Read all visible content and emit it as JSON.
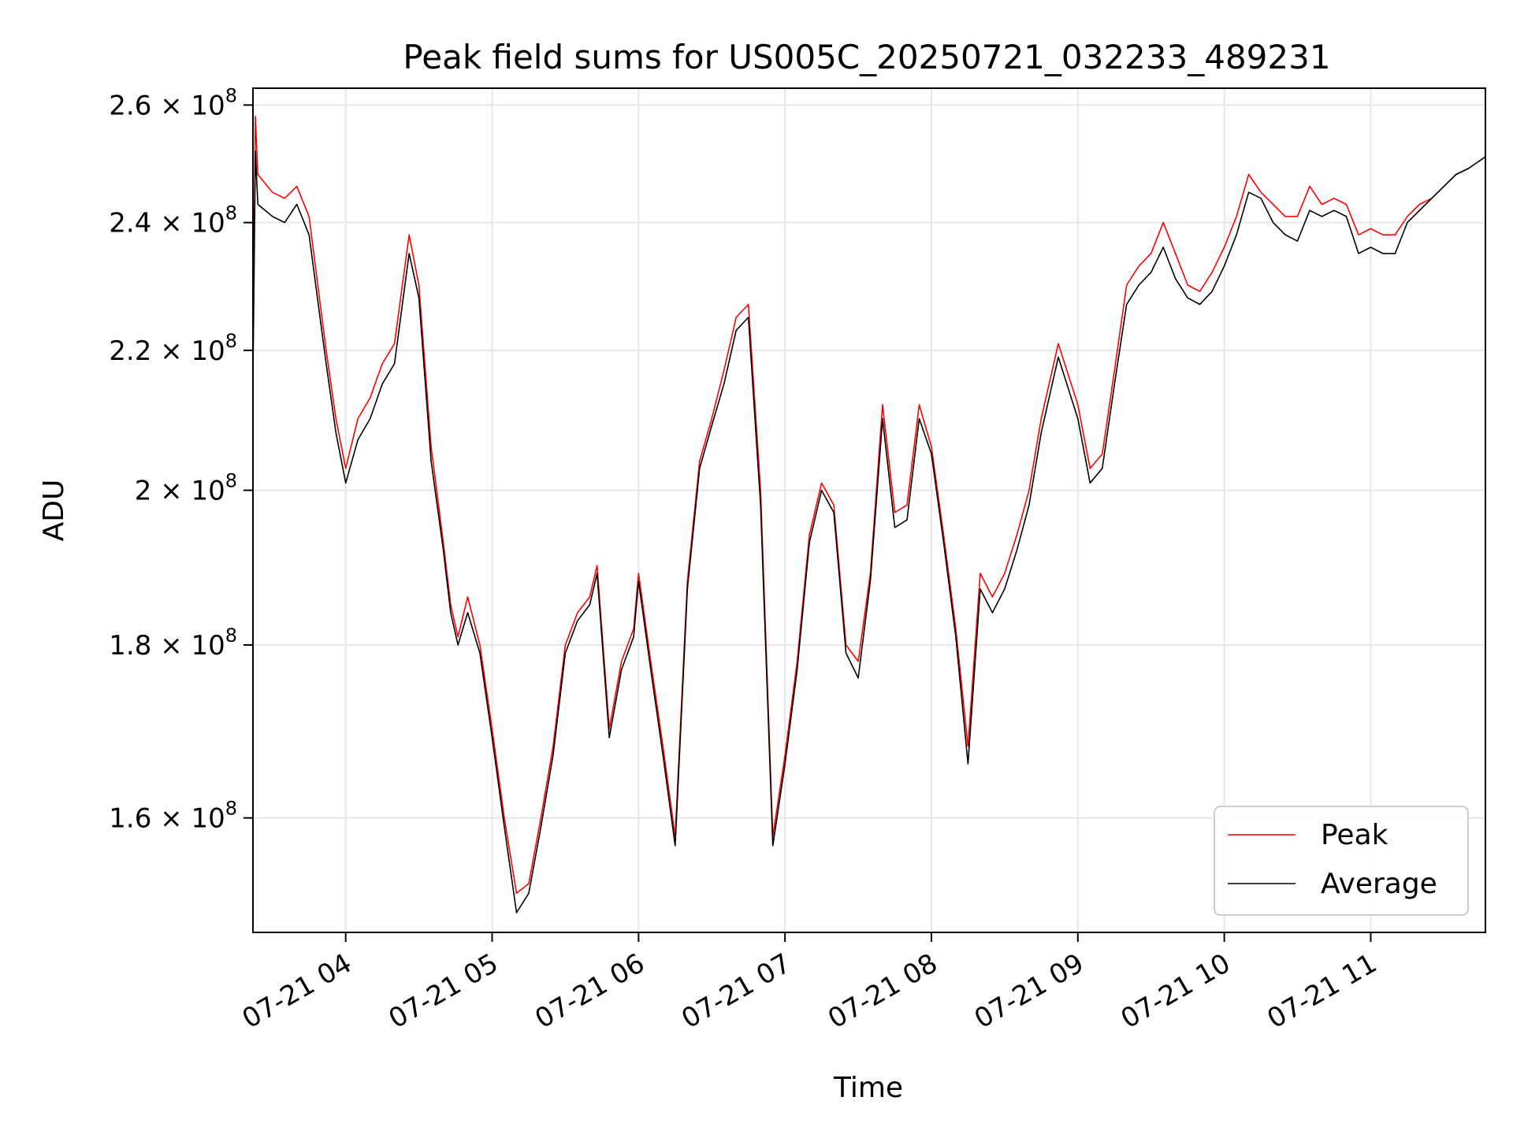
{
  "chart_data": {
    "type": "line",
    "title": "Peak field sums for US005C_20250721_032233_489231",
    "xlabel": "Time",
    "ylabel": "ADU",
    "y_scale": "log",
    "grid": true,
    "legend_position": "lower-right",
    "x_range": [
      "2025-07-21T03:22",
      "2025-07-21T11:47"
    ],
    "ylim": [
      148000000,
      263000000
    ],
    "x_ticks": [
      {
        "t": "2025-07-21T04:00",
        "label": "07-21 04"
      },
      {
        "t": "2025-07-21T05:00",
        "label": "07-21 05"
      },
      {
        "t": "2025-07-21T06:00",
        "label": "07-21 06"
      },
      {
        "t": "2025-07-21T07:00",
        "label": "07-21 07"
      },
      {
        "t": "2025-07-21T08:00",
        "label": "07-21 08"
      },
      {
        "t": "2025-07-21T09:00",
        "label": "07-21 09"
      },
      {
        "t": "2025-07-21T10:00",
        "label": "07-21 10"
      },
      {
        "t": "2025-07-21T11:00",
        "label": "07-21 11"
      }
    ],
    "y_ticks": [
      {
        "v": 160000000,
        "mant": "1.6",
        "exp": "8"
      },
      {
        "v": 180000000,
        "mant": "1.8",
        "exp": "8"
      },
      {
        "v": 200000000,
        "mant": "2",
        "exp": "8"
      },
      {
        "v": 220000000,
        "mant": "2.2",
        "exp": "8"
      },
      {
        "v": 240000000,
        "mant": "2.4",
        "exp": "8"
      },
      {
        "v": 260000000,
        "mant": "2.6",
        "exp": "8"
      }
    ],
    "series": [
      {
        "name": "Peak",
        "color": "#ff0000",
        "points": [
          [
            "2025-07-21T03:22",
            220000000
          ],
          [
            "2025-07-21T03:23",
            258000000
          ],
          [
            "2025-07-21T03:24",
            248000000
          ],
          [
            "2025-07-21T03:30",
            245000000
          ],
          [
            "2025-07-21T03:35",
            244000000
          ],
          [
            "2025-07-21T03:40",
            246000000
          ],
          [
            "2025-07-21T03:45",
            241000000
          ],
          [
            "2025-07-21T03:52",
            220000000
          ],
          [
            "2025-07-21T03:56",
            210000000
          ],
          [
            "2025-07-21T04:00",
            203000000
          ],
          [
            "2025-07-21T04:05",
            210000000
          ],
          [
            "2025-07-21T04:10",
            213000000
          ],
          [
            "2025-07-21T04:15",
            218000000
          ],
          [
            "2025-07-21T04:20",
            221000000
          ],
          [
            "2025-07-21T04:26",
            238000000
          ],
          [
            "2025-07-21T04:30",
            230000000
          ],
          [
            "2025-07-21T04:35",
            206000000
          ],
          [
            "2025-07-21T04:40",
            193000000
          ],
          [
            "2025-07-21T04:43",
            185000000
          ],
          [
            "2025-07-21T04:46",
            181000000
          ],
          [
            "2025-07-21T04:50",
            186000000
          ],
          [
            "2025-07-21T04:55",
            180000000
          ],
          [
            "2025-07-21T05:00",
            170000000
          ],
          [
            "2025-07-21T05:05",
            160000000
          ],
          [
            "2025-07-21T05:10",
            152000000
          ],
          [
            "2025-07-21T05:15",
            153000000
          ],
          [
            "2025-07-21T05:20",
            160000000
          ],
          [
            "2025-07-21T05:25",
            168000000
          ],
          [
            "2025-07-21T05:30",
            180000000
          ],
          [
            "2025-07-21T05:35",
            184000000
          ],
          [
            "2025-07-21T05:40",
            186000000
          ],
          [
            "2025-07-21T05:43",
            190000000
          ],
          [
            "2025-07-21T05:48",
            170000000
          ],
          [
            "2025-07-21T05:53",
            178000000
          ],
          [
            "2025-07-21T05:58",
            182000000
          ],
          [
            "2025-07-21T06:00",
            189000000
          ],
          [
            "2025-07-21T06:05",
            178000000
          ],
          [
            "2025-07-21T06:10",
            168000000
          ],
          [
            "2025-07-21T06:15",
            158000000
          ],
          [
            "2025-07-21T06:20",
            188000000
          ],
          [
            "2025-07-21T06:25",
            204000000
          ],
          [
            "2025-07-21T06:30",
            210000000
          ],
          [
            "2025-07-21T06:35",
            217000000
          ],
          [
            "2025-07-21T06:40",
            225000000
          ],
          [
            "2025-07-21T06:45",
            227000000
          ],
          [
            "2025-07-21T06:50",
            200000000
          ],
          [
            "2025-07-21T06:55",
            158000000
          ],
          [
            "2025-07-21T07:00",
            167000000
          ],
          [
            "2025-07-21T07:05",
            178000000
          ],
          [
            "2025-07-21T07:10",
            194000000
          ],
          [
            "2025-07-21T07:15",
            201000000
          ],
          [
            "2025-07-21T07:20",
            198000000
          ],
          [
            "2025-07-21T07:25",
            180000000
          ],
          [
            "2025-07-21T07:30",
            178000000
          ],
          [
            "2025-07-21T07:35",
            189000000
          ],
          [
            "2025-07-21T07:40",
            212000000
          ],
          [
            "2025-07-21T07:45",
            197000000
          ],
          [
            "2025-07-21T07:50",
            198000000
          ],
          [
            "2025-07-21T07:55",
            212000000
          ],
          [
            "2025-07-21T08:00",
            206000000
          ],
          [
            "2025-07-21T08:05",
            194000000
          ],
          [
            "2025-07-21T08:10",
            182000000
          ],
          [
            "2025-07-21T08:15",
            168000000
          ],
          [
            "2025-07-21T08:20",
            189000000
          ],
          [
            "2025-07-21T08:25",
            186000000
          ],
          [
            "2025-07-21T08:30",
            189000000
          ],
          [
            "2025-07-21T08:35",
            194000000
          ],
          [
            "2025-07-21T08:40",
            200000000
          ],
          [
            "2025-07-21T08:45",
            210000000
          ],
          [
            "2025-07-21T08:52",
            221000000
          ],
          [
            "2025-07-21T09:00",
            212000000
          ],
          [
            "2025-07-21T09:05",
            203000000
          ],
          [
            "2025-07-21T09:10",
            205000000
          ],
          [
            "2025-07-21T09:15",
            217000000
          ],
          [
            "2025-07-21T09:20",
            230000000
          ],
          [
            "2025-07-21T09:25",
            233000000
          ],
          [
            "2025-07-21T09:30",
            235000000
          ],
          [
            "2025-07-21T09:35",
            240000000
          ],
          [
            "2025-07-21T09:40",
            235000000
          ],
          [
            "2025-07-21T09:45",
            230000000
          ],
          [
            "2025-07-21T09:50",
            229000000
          ],
          [
            "2025-07-21T09:55",
            232000000
          ],
          [
            "2025-07-21T10:00",
            236000000
          ],
          [
            "2025-07-21T10:05",
            241000000
          ],
          [
            "2025-07-21T10:10",
            248000000
          ],
          [
            "2025-07-21T10:15",
            245000000
          ],
          [
            "2025-07-21T10:20",
            243000000
          ],
          [
            "2025-07-21T10:25",
            241000000
          ],
          [
            "2025-07-21T10:30",
            241000000
          ],
          [
            "2025-07-21T10:35",
            246000000
          ],
          [
            "2025-07-21T10:40",
            243000000
          ],
          [
            "2025-07-21T10:45",
            244000000
          ],
          [
            "2025-07-21T10:50",
            243000000
          ],
          [
            "2025-07-21T10:55",
            238000000
          ],
          [
            "2025-07-21T11:00",
            239000000
          ],
          [
            "2025-07-21T11:05",
            238000000
          ],
          [
            "2025-07-21T11:10",
            238000000
          ],
          [
            "2025-07-21T11:15",
            241000000
          ],
          [
            "2025-07-21T11:20",
            243000000
          ],
          [
            "2025-07-21T11:25",
            244000000
          ],
          [
            "2025-07-21T11:30",
            246000000
          ],
          [
            "2025-07-21T11:35",
            248000000
          ],
          [
            "2025-07-21T11:40",
            249000000
          ],
          [
            "2025-07-21T11:47",
            251000000
          ]
        ]
      },
      {
        "name": "Average",
        "color": "#000000",
        "points": [
          [
            "2025-07-21T03:22",
            216000000
          ],
          [
            "2025-07-21T03:23",
            252000000
          ],
          [
            "2025-07-21T03:24",
            243000000
          ],
          [
            "2025-07-21T03:30",
            241000000
          ],
          [
            "2025-07-21T03:35",
            240000000
          ],
          [
            "2025-07-21T03:40",
            243000000
          ],
          [
            "2025-07-21T03:45",
            238000000
          ],
          [
            "2025-07-21T03:52",
            218000000
          ],
          [
            "2025-07-21T03:56",
            208000000
          ],
          [
            "2025-07-21T04:00",
            201000000
          ],
          [
            "2025-07-21T04:05",
            207000000
          ],
          [
            "2025-07-21T04:10",
            210000000
          ],
          [
            "2025-07-21T04:15",
            215000000
          ],
          [
            "2025-07-21T04:20",
            218000000
          ],
          [
            "2025-07-21T04:26",
            235000000
          ],
          [
            "2025-07-21T04:30",
            228000000
          ],
          [
            "2025-07-21T04:35",
            204000000
          ],
          [
            "2025-07-21T04:40",
            192000000
          ],
          [
            "2025-07-21T04:43",
            184000000
          ],
          [
            "2025-07-21T04:46",
            180000000
          ],
          [
            "2025-07-21T04:50",
            184000000
          ],
          [
            "2025-07-21T04:55",
            179000000
          ],
          [
            "2025-07-21T05:00",
            169000000
          ],
          [
            "2025-07-21T05:05",
            159000000
          ],
          [
            "2025-07-21T05:10",
            150000000
          ],
          [
            "2025-07-21T05:15",
            152000000
          ],
          [
            "2025-07-21T05:20",
            159000000
          ],
          [
            "2025-07-21T05:25",
            167000000
          ],
          [
            "2025-07-21T05:30",
            179000000
          ],
          [
            "2025-07-21T05:35",
            183000000
          ],
          [
            "2025-07-21T05:40",
            185000000
          ],
          [
            "2025-07-21T05:43",
            189000000
          ],
          [
            "2025-07-21T05:48",
            169000000
          ],
          [
            "2025-07-21T05:53",
            177000000
          ],
          [
            "2025-07-21T05:58",
            181000000
          ],
          [
            "2025-07-21T06:00",
            188000000
          ],
          [
            "2025-07-21T06:05",
            177000000
          ],
          [
            "2025-07-21T06:10",
            167000000
          ],
          [
            "2025-07-21T06:15",
            157000000
          ],
          [
            "2025-07-21T06:20",
            187000000
          ],
          [
            "2025-07-21T06:25",
            203000000
          ],
          [
            "2025-07-21T06:30",
            209000000
          ],
          [
            "2025-07-21T06:35",
            215000000
          ],
          [
            "2025-07-21T06:40",
            223000000
          ],
          [
            "2025-07-21T06:45",
            225000000
          ],
          [
            "2025-07-21T06:50",
            198000000
          ],
          [
            "2025-07-21T06:55",
            157000000
          ],
          [
            "2025-07-21T07:00",
            166000000
          ],
          [
            "2025-07-21T07:05",
            177000000
          ],
          [
            "2025-07-21T07:10",
            193000000
          ],
          [
            "2025-07-21T07:15",
            200000000
          ],
          [
            "2025-07-21T07:20",
            197000000
          ],
          [
            "2025-07-21T07:25",
            179000000
          ],
          [
            "2025-07-21T07:30",
            176000000
          ],
          [
            "2025-07-21T07:35",
            188000000
          ],
          [
            "2025-07-21T07:40",
            210000000
          ],
          [
            "2025-07-21T07:45",
            195000000
          ],
          [
            "2025-07-21T07:50",
            196000000
          ],
          [
            "2025-07-21T07:55",
            210000000
          ],
          [
            "2025-07-21T08:00",
            205000000
          ],
          [
            "2025-07-21T08:05",
            193000000
          ],
          [
            "2025-07-21T08:10",
            181000000
          ],
          [
            "2025-07-21T08:15",
            166000000
          ],
          [
            "2025-07-21T08:20",
            187000000
          ],
          [
            "2025-07-21T08:25",
            184000000
          ],
          [
            "2025-07-21T08:30",
            187000000
          ],
          [
            "2025-07-21T08:35",
            192000000
          ],
          [
            "2025-07-21T08:40",
            198000000
          ],
          [
            "2025-07-21T08:45",
            208000000
          ],
          [
            "2025-07-21T08:52",
            219000000
          ],
          [
            "2025-07-21T09:00",
            210000000
          ],
          [
            "2025-07-21T09:05",
            201000000
          ],
          [
            "2025-07-21T09:10",
            203000000
          ],
          [
            "2025-07-21T09:15",
            215000000
          ],
          [
            "2025-07-21T09:20",
            227000000
          ],
          [
            "2025-07-21T09:25",
            230000000
          ],
          [
            "2025-07-21T09:30",
            232000000
          ],
          [
            "2025-07-21T09:35",
            236000000
          ],
          [
            "2025-07-21T09:40",
            231000000
          ],
          [
            "2025-07-21T09:45",
            228000000
          ],
          [
            "2025-07-21T09:50",
            227000000
          ],
          [
            "2025-07-21T09:55",
            229000000
          ],
          [
            "2025-07-21T10:00",
            233000000
          ],
          [
            "2025-07-21T10:05",
            238000000
          ],
          [
            "2025-07-21T10:10",
            245000000
          ],
          [
            "2025-07-21T10:15",
            244000000
          ],
          [
            "2025-07-21T10:20",
            240000000
          ],
          [
            "2025-07-21T10:25",
            238000000
          ],
          [
            "2025-07-21T10:30",
            237000000
          ],
          [
            "2025-07-21T10:35",
            242000000
          ],
          [
            "2025-07-21T10:40",
            241000000
          ],
          [
            "2025-07-21T10:45",
            242000000
          ],
          [
            "2025-07-21T10:50",
            241000000
          ],
          [
            "2025-07-21T10:55",
            235000000
          ],
          [
            "2025-07-21T11:00",
            236000000
          ],
          [
            "2025-07-21T11:05",
            235000000
          ],
          [
            "2025-07-21T11:10",
            235000000
          ],
          [
            "2025-07-21T11:15",
            240000000
          ],
          [
            "2025-07-21T11:20",
            242000000
          ],
          [
            "2025-07-21T11:25",
            244000000
          ],
          [
            "2025-07-21T11:30",
            246000000
          ],
          [
            "2025-07-21T11:35",
            248000000
          ],
          [
            "2025-07-21T11:40",
            249000000
          ],
          [
            "2025-07-21T11:47",
            251000000
          ]
        ]
      }
    ]
  }
}
